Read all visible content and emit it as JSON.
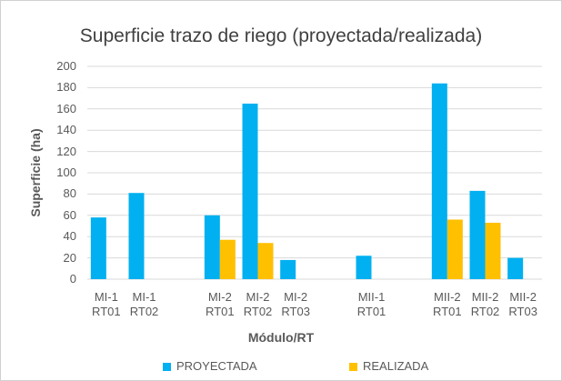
{
  "chart_data": {
    "type": "bar",
    "title": "Superficie trazo de riego (proyectada/realizada)",
    "x_label": "Módulo/RT",
    "y_label": "Superficie (ha)",
    "categories": [
      "MI-1 RT01",
      "MI-1 RT02",
      null,
      "MI-2 RT01",
      "MI-2 RT02",
      "MI-2 RT03",
      null,
      "MII-1 RT01",
      null,
      "MII-2 RT01",
      "MII-2 RT02",
      "MII-2 RT03"
    ],
    "series": [
      {
        "name": "PROYECTADA",
        "color": "#00b0f0",
        "values": [
          58,
          81,
          null,
          60,
          165,
          18,
          null,
          22,
          null,
          184,
          83,
          20
        ]
      },
      {
        "name": "REALIZADA",
        "color": "#ffc000",
        "values": [
          null,
          null,
          null,
          37,
          34,
          null,
          null,
          null,
          null,
          56,
          53,
          null
        ]
      }
    ],
    "ylim": [
      0,
      200
    ],
    "yticks": [
      0,
      20,
      40,
      60,
      80,
      100,
      120,
      140,
      160,
      180,
      200
    ],
    "grid": true,
    "legend": "bottom"
  }
}
